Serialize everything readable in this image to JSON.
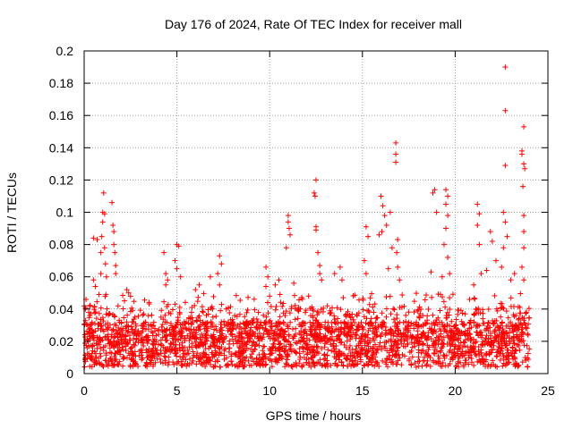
{
  "chart_data": {
    "type": "scatter",
    "title": "Day 176 of 2024, Rate Of TEC Index for receiver mall",
    "xlabel": "GPS time / hours",
    "ylabel": "ROTI / TECUs",
    "xlim": [
      0,
      25
    ],
    "ylim": [
      0,
      0.2
    ],
    "xticks": [
      "0",
      "5",
      "10",
      "15",
      "20",
      "25"
    ],
    "yticks": [
      "0",
      "0.02",
      "0.04",
      "0.06",
      "0.08",
      "0.1",
      "0.12",
      "0.14",
      "0.16",
      "0.18",
      "0.2"
    ],
    "grid": true,
    "marker": "+",
    "color": "#ff0000",
    "background_density": {
      "x_range": [
        0,
        24
      ],
      "note": "dense band of points, mostly between 0.005 and 0.035 TECU, across the whole day"
    },
    "series": [
      {
        "name": "ROTI",
        "points": [
          [
            0.1,
            0.046
          ],
          [
            0.3,
            0.042
          ],
          [
            0.5,
            0.058
          ],
          [
            0.6,
            0.054
          ],
          [
            0.8,
            0.049
          ],
          [
            0.9,
            0.062
          ],
          [
            0.9,
            0.075
          ],
          [
            0.95,
            0.085
          ],
          [
            1.0,
            0.094
          ],
          [
            1.0,
            0.1
          ],
          [
            1.05,
            0.112
          ],
          [
            1.1,
            0.099
          ],
          [
            1.1,
            0.078
          ],
          [
            1.15,
            0.068
          ],
          [
            1.2,
            0.06
          ],
          [
            1.5,
            0.106
          ],
          [
            1.55,
            0.092
          ],
          [
            1.6,
            0.088
          ],
          [
            1.6,
            0.08
          ],
          [
            1.65,
            0.075
          ],
          [
            1.7,
            0.067
          ],
          [
            1.7,
            0.062
          ],
          [
            0.5,
            0.084
          ],
          [
            0.7,
            0.083
          ],
          [
            2.3,
            0.052
          ],
          [
            2.4,
            0.05
          ],
          [
            2.5,
            0.048
          ],
          [
            4.3,
            0.075
          ],
          [
            4.4,
            0.062
          ],
          [
            4.5,
            0.058
          ],
          [
            4.4,
            0.055
          ],
          [
            5.0,
            0.08
          ],
          [
            5.1,
            0.079
          ],
          [
            4.9,
            0.07
          ],
          [
            5.0,
            0.065
          ],
          [
            5.2,
            0.06
          ],
          [
            6.2,
            0.055
          ],
          [
            6.0,
            0.052
          ],
          [
            7.3,
            0.073
          ],
          [
            7.4,
            0.068
          ],
          [
            7.2,
            0.062
          ],
          [
            7.3,
            0.055
          ],
          [
            6.8,
            0.06
          ],
          [
            9.8,
            0.066
          ],
          [
            9.9,
            0.06
          ],
          [
            9.8,
            0.054
          ],
          [
            10.0,
            0.048
          ],
          [
            11.0,
            0.098
          ],
          [
            11.0,
            0.094
          ],
          [
            11.05,
            0.09
          ],
          [
            11.1,
            0.086
          ],
          [
            10.9,
            0.078
          ],
          [
            10.5,
            0.058
          ],
          [
            10.3,
            0.055
          ],
          [
            11.3,
            0.056
          ],
          [
            12.5,
            0.12
          ],
          [
            12.4,
            0.112
          ],
          [
            12.45,
            0.11
          ],
          [
            12.5,
            0.091
          ],
          [
            12.5,
            0.089
          ],
          [
            12.6,
            0.075
          ],
          [
            12.7,
            0.067
          ],
          [
            12.7,
            0.062
          ],
          [
            12.8,
            0.058
          ],
          [
            13.8,
            0.066
          ],
          [
            13.5,
            0.062
          ],
          [
            13.9,
            0.058
          ],
          [
            15.2,
            0.091
          ],
          [
            15.3,
            0.085
          ],
          [
            15.1,
            0.07
          ],
          [
            15.2,
            0.062
          ],
          [
            16.0,
            0.11
          ],
          [
            16.1,
            0.104
          ],
          [
            16.05,
            0.088
          ],
          [
            15.9,
            0.086
          ],
          [
            16.2,
            0.098
          ],
          [
            16.5,
            0.1
          ],
          [
            16.3,
            0.092
          ],
          [
            16.6,
            0.078
          ],
          [
            16.4,
            0.065
          ],
          [
            16.8,
            0.143
          ],
          [
            16.8,
            0.136
          ],
          [
            16.8,
            0.131
          ],
          [
            16.9,
            0.083
          ],
          [
            16.85,
            0.075
          ],
          [
            16.9,
            0.066
          ],
          [
            17.0,
            0.058
          ],
          [
            18.7,
            0.063
          ],
          [
            18.9,
            0.114
          ],
          [
            19.0,
            0.1
          ],
          [
            18.8,
            0.112
          ],
          [
            19.5,
            0.114
          ],
          [
            19.6,
            0.11
          ],
          [
            19.5,
            0.105
          ],
          [
            19.6,
            0.098
          ],
          [
            19.5,
            0.09
          ],
          [
            19.4,
            0.08
          ],
          [
            19.6,
            0.072
          ],
          [
            19.7,
            0.062
          ],
          [
            19.3,
            0.06
          ],
          [
            21.2,
            0.105
          ],
          [
            21.3,
            0.099
          ],
          [
            21.2,
            0.092
          ],
          [
            21.3,
            0.08
          ],
          [
            21.4,
            0.062
          ],
          [
            21.0,
            0.055
          ],
          [
            21.9,
            0.088
          ],
          [
            22.0,
            0.082
          ],
          [
            22.2,
            0.07
          ],
          [
            21.7,
            0.064
          ],
          [
            22.6,
            0.1
          ],
          [
            22.7,
            0.094
          ],
          [
            22.8,
            0.085
          ],
          [
            22.6,
            0.078
          ],
          [
            22.5,
            0.066
          ],
          [
            22.7,
            0.19
          ],
          [
            22.7,
            0.163
          ],
          [
            22.7,
            0.129
          ],
          [
            23.2,
            0.062
          ],
          [
            23.0,
            0.058
          ],
          [
            23.7,
            0.153
          ],
          [
            23.6,
            0.138
          ],
          [
            23.6,
            0.136
          ],
          [
            23.7,
            0.13
          ],
          [
            23.75,
            0.127
          ],
          [
            23.65,
            0.116
          ],
          [
            23.7,
            0.098
          ],
          [
            23.7,
            0.088
          ],
          [
            23.7,
            0.078
          ],
          [
            23.6,
            0.066
          ],
          [
            23.7,
            0.058
          ]
        ]
      }
    ]
  }
}
